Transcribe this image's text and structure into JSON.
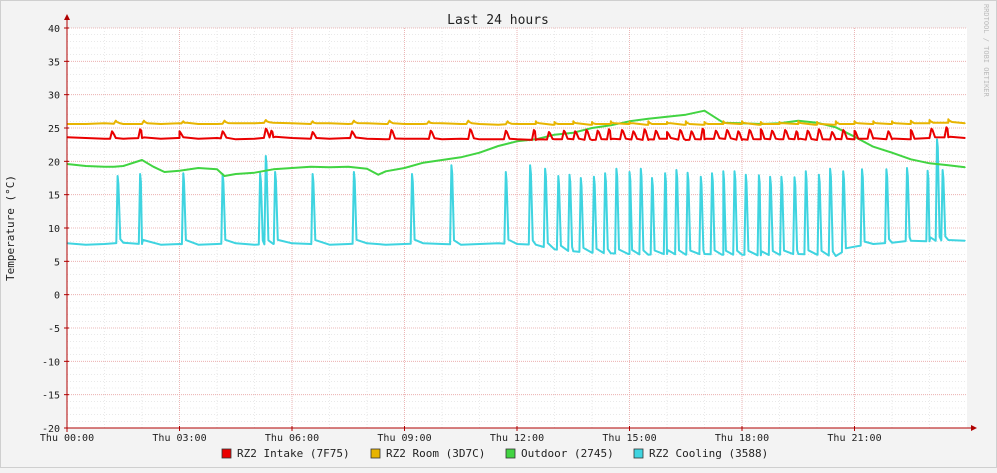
{
  "chart_data": {
    "type": "line",
    "title": "Last 24 hours",
    "ylabel": "Temperature (°C)",
    "xlabel": "",
    "watermark": "RRDTOOL / TOBI OETIKER",
    "ylim": [
      -20,
      40
    ],
    "xlim": [
      0,
      24
    ],
    "grid": true,
    "legend_position": "bottom",
    "y_ticks": [
      "40",
      "35",
      "30",
      "25",
      "20",
      "15",
      "10",
      "5",
      "0",
      "-5",
      "-10",
      "-15",
      "-20"
    ],
    "y_tick_values": [
      40,
      35,
      30,
      25,
      20,
      15,
      10,
      5,
      0,
      -5,
      -10,
      -15,
      -20
    ],
    "x_ticks": [
      "Thu 00:00",
      "Thu 03:00",
      "Thu 06:00",
      "Thu 09:00",
      "Thu 12:00",
      "Thu 15:00",
      "Thu 18:00",
      "Thu 21:00"
    ],
    "x_tick_values": [
      0,
      3,
      6,
      9,
      12,
      15,
      18,
      21
    ],
    "colors": {
      "background": "#f3f3f3",
      "canvas": "#ffffff",
      "major_grid": "#e8a4a4",
      "minor_grid": "#dcdcdc",
      "axis": "#b00000",
      "text": "#222222"
    },
    "series": [
      {
        "name": "RZ2 Intake (7F75)",
        "color": "#ea0000",
        "x": [
          0,
          0.5,
          1,
          1.5,
          2,
          2.5,
          3,
          3.5,
          4,
          4.5,
          5,
          5.5,
          6,
          6.5,
          7,
          7.5,
          8,
          8.5,
          9,
          9.5,
          10,
          10.5,
          11,
          11.5,
          12,
          12.5,
          13,
          13.5,
          14,
          14.5,
          15,
          15.5,
          16,
          16.5,
          17,
          17.5,
          18,
          18.5,
          19,
          19.5,
          20,
          20.5,
          21,
          21.5,
          22,
          22.5,
          23,
          23.5,
          23.95
        ],
        "values": [
          23.6,
          23.5,
          23.4,
          23.4,
          23.5,
          23.4,
          23.5,
          23.4,
          23.5,
          23.3,
          23.4,
          23.6,
          23.5,
          23.4,
          23.4,
          23.5,
          23.4,
          23.3,
          23.4,
          23.4,
          23.3,
          23.4,
          23.3,
          23.3,
          23.3,
          23.2,
          23.3,
          23.3,
          23.2,
          23.3,
          23.3,
          23.2,
          23.4,
          23.2,
          23.3,
          23.4,
          23.2,
          23.3,
          23.3,
          23.3,
          23.2,
          23.3,
          23.3,
          23.4,
          23.3,
          23.3,
          23.5,
          23.6,
          23.5
        ]
      },
      {
        "name": "RZ2 Room (3D7C)",
        "color": "#e8b400",
        "x": [
          0,
          0.5,
          1,
          1.5,
          2,
          2.5,
          3,
          3.5,
          4,
          4.5,
          5,
          5.5,
          6,
          6.5,
          7,
          7.5,
          8,
          8.5,
          9,
          9.5,
          10,
          10.5,
          11,
          11.5,
          12,
          12.5,
          13,
          13.5,
          14,
          14.5,
          15,
          15.5,
          16,
          16.5,
          17,
          17.5,
          18,
          18.5,
          19,
          19.5,
          20,
          20.5,
          21,
          21.5,
          22,
          22.5,
          23,
          23.5,
          23.95
        ],
        "values": [
          25.6,
          25.6,
          25.7,
          25.6,
          25.6,
          25.6,
          25.7,
          25.6,
          25.6,
          25.7,
          25.7,
          25.8,
          25.7,
          25.6,
          25.7,
          25.6,
          25.7,
          25.6,
          25.6,
          25.6,
          25.7,
          25.6,
          25.6,
          25.5,
          25.6,
          25.6,
          25.5,
          25.6,
          25.5,
          25.6,
          25.6,
          25.5,
          25.6,
          25.5,
          25.5,
          25.6,
          25.6,
          25.5,
          25.6,
          25.6,
          25.5,
          25.5,
          25.6,
          25.6,
          25.6,
          25.6,
          25.7,
          25.8,
          25.7
        ]
      },
      {
        "name": "Outdoor (2745)",
        "color": "#42d442",
        "x": [
          0,
          0.5,
          1,
          1.25,
          1.5,
          2,
          2.3,
          2.6,
          3,
          3.5,
          4,
          4.2,
          4.5,
          5,
          5.5,
          6,
          6.5,
          7,
          7.5,
          8,
          8.3,
          8.5,
          9,
          9.5,
          10,
          10.5,
          11,
          11.5,
          12,
          12.5,
          13,
          13.5,
          14,
          14.5,
          15,
          15.5,
          16,
          16.5,
          17,
          17.5,
          18,
          18.5,
          19,
          19.5,
          20,
          20.5,
          21,
          21.5,
          22,
          22.5,
          23,
          23.5,
          23.95
        ],
        "values": [
          19.6,
          19.3,
          19.2,
          19.2,
          19.3,
          20.2,
          19.2,
          18.4,
          18.6,
          19.0,
          18.8,
          17.8,
          18.1,
          18.3,
          18.8,
          19.0,
          19.2,
          19.1,
          19.2,
          18.9,
          18.0,
          18.5,
          19.0,
          19.8,
          20.2,
          20.6,
          21.3,
          22.3,
          23.0,
          23.3,
          24.0,
          24.3,
          25.0,
          25.4,
          26.0,
          26.4,
          26.7,
          27.0,
          27.6,
          25.8,
          25.7,
          25.6,
          25.7,
          26.1,
          25.8,
          25.1,
          23.7,
          22.2,
          21.3,
          20.3,
          19.7,
          19.4,
          19.1
        ]
      },
      {
        "name": "RZ2 Cooling (3588)",
        "color": "#3fd4e0",
        "x": [
          0,
          0.5,
          1,
          1.5,
          2,
          2.5,
          3,
          3.5,
          4,
          4.5,
          5,
          5.5,
          6,
          6.5,
          7,
          7.5,
          8,
          8.5,
          9,
          9.5,
          10,
          10.5,
          11,
          11.5,
          12,
          12.5,
          13,
          13.5,
          14,
          14.5,
          15,
          15.5,
          16,
          16.5,
          17,
          17.5,
          18,
          18.5,
          19,
          19.5,
          20,
          20.5,
          21,
          21.5,
          22,
          22.5,
          23,
          23.5,
          23.95
        ],
        "values": [
          7.7,
          7.5,
          7.6,
          7.8,
          7.6,
          7.5,
          7.6,
          7.5,
          7.6,
          7.7,
          7.5,
          7.6,
          7.7,
          7.6,
          7.5,
          7.6,
          7.7,
          7.5,
          7.6,
          7.7,
          7.6,
          7.5,
          7.6,
          7.7,
          7.6,
          7.5,
          6.8,
          6.5,
          6.3,
          6.2,
          6.1,
          6.0,
          6.1,
          6.0,
          6.1,
          6.0,
          6.0,
          5.9,
          6.0,
          6.1,
          6.0,
          5.8,
          7.2,
          7.6,
          7.8,
          8.1,
          8.0,
          8.2,
          8.1
        ]
      }
    ],
    "spikes": [
      {
        "series": 3,
        "x": [
          1.35,
          1.95,
          3.1,
          4.15,
          5.15,
          5.3,
          5.55,
          6.55,
          7.65,
          9.2,
          10.25,
          11.7,
          12.35,
          12.75,
          13.1,
          13.4,
          13.7,
          14.05,
          14.35,
          14.65,
          15.0,
          15.3,
          15.6,
          15.95,
          16.25,
          16.55,
          16.9,
          17.2,
          17.5,
          17.8,
          18.1,
          18.45,
          18.75,
          19.05,
          19.4,
          19.7,
          20.05,
          20.35,
          20.7,
          21.2,
          21.85,
          22.4,
          22.95,
          23.2,
          23.35
        ],
        "values": [
          17.8,
          18.1,
          18.2,
          18.1,
          18.2,
          20.8,
          18.4,
          18.1,
          18.4,
          18.1,
          19.4,
          18.4,
          19.4,
          18.9,
          17.8,
          18.0,
          17.5,
          17.7,
          18.2,
          18.9,
          18.4,
          18.9,
          17.5,
          18.2,
          18.7,
          18.3,
          17.7,
          18.2,
          18.5,
          18.5,
          18.0,
          17.9,
          17.7,
          17.7,
          17.6,
          18.5,
          18.0,
          18.9,
          18.5,
          18.8,
          18.8,
          19.0,
          18.6,
          23.3,
          18.7
        ]
      },
      {
        "series": 0,
        "x": [
          1.2,
          1.95,
          3.0,
          4.15,
          5.3,
          5.45,
          6.55,
          7.6,
          8.65,
          9.7,
          10.75,
          11.7,
          12.45,
          12.85,
          13.25,
          13.55,
          13.85,
          14.15,
          14.45,
          14.8,
          15.1,
          15.4,
          15.7,
          16.0,
          16.35,
          16.65,
          16.95,
          17.3,
          17.6,
          17.9,
          18.2,
          18.5,
          18.8,
          19.15,
          19.45,
          19.75,
          20.05,
          20.4,
          20.7,
          21.0,
          21.4,
          21.9,
          22.5,
          23.05,
          23.45
        ],
        "values": [
          24.5,
          24.8,
          24.5,
          24.5,
          24.9,
          24.6,
          24.4,
          24.5,
          24.7,
          24.6,
          24.8,
          24.6,
          24.7,
          24.4,
          24.6,
          24.5,
          24.7,
          24.6,
          24.8,
          24.7,
          24.5,
          24.8,
          24.6,
          24.4,
          24.7,
          24.5,
          24.9,
          24.6,
          24.7,
          24.5,
          24.7,
          24.8,
          24.6,
          24.7,
          24.5,
          24.6,
          24.8,
          24.4,
          24.7,
          24.6,
          24.8,
          24.5,
          24.7,
          24.9,
          25.1
        ]
      },
      {
        "series": 1,
        "x": [
          1.3,
          2.05,
          3.1,
          4.2,
          5.3,
          6.55,
          7.65,
          8.6,
          9.65,
          10.7,
          11.75,
          12.5,
          13.0,
          13.5,
          14.0,
          14.5,
          15.0,
          15.5,
          16.0,
          16.5,
          17.0,
          17.5,
          18.0,
          18.5,
          19.0,
          19.5,
          20.0,
          20.5,
          21.0,
          21.5,
          22.0,
          22.5,
          23.0,
          23.5
        ],
        "values": [
          26.1,
          26.1,
          26.0,
          26.1,
          26.2,
          26.0,
          26.1,
          26.1,
          26.0,
          26.1,
          26.0,
          26.0,
          25.9,
          26.0,
          25.9,
          26.0,
          25.9,
          26.0,
          25.9,
          26.0,
          25.9,
          26.0,
          26.0,
          25.9,
          25.9,
          26.0,
          25.9,
          26.0,
          26.0,
          26.0,
          26.0,
          26.1,
          26.2,
          26.3
        ]
      }
    ]
  },
  "legend": [
    {
      "label": "RZ2 Intake (7F75)",
      "color": "#ea0000"
    },
    {
      "label": "RZ2 Room (3D7C)",
      "color": "#e8b400"
    },
    {
      "label": "Outdoor (2745)",
      "color": "#42d442"
    },
    {
      "label": "RZ2 Cooling (3588)",
      "color": "#3fd4e0"
    }
  ]
}
